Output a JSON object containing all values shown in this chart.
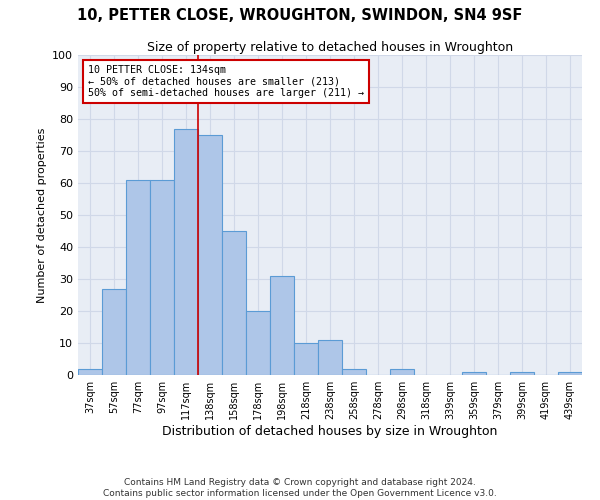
{
  "title1": "10, PETTER CLOSE, WROUGHTON, SWINDON, SN4 9SF",
  "title2": "Size of property relative to detached houses in Wroughton",
  "xlabel": "Distribution of detached houses by size in Wroughton",
  "ylabel": "Number of detached properties",
  "categories": [
    "37sqm",
    "57sqm",
    "77sqm",
    "97sqm",
    "117sqm",
    "138sqm",
    "158sqm",
    "178sqm",
    "198sqm",
    "218sqm",
    "238sqm",
    "258sqm",
    "278sqm",
    "298sqm",
    "318sqm",
    "339sqm",
    "359sqm",
    "379sqm",
    "399sqm",
    "419sqm",
    "439sqm"
  ],
  "values": [
    2,
    27,
    61,
    61,
    77,
    75,
    45,
    20,
    31,
    10,
    11,
    2,
    0,
    2,
    0,
    0,
    1,
    0,
    1,
    0,
    1
  ],
  "bar_color": "#aec6e8",
  "bar_edge_color": "#5b9bd5",
  "highlight_label": "10 PETTER CLOSE: 134sqm",
  "annotation_line1": "← 50% of detached houses are smaller (213)",
  "annotation_line2": "50% of semi-detached houses are larger (211) →",
  "annotation_box_color": "#ffffff",
  "annotation_box_edge_color": "#cc0000",
  "grid_color": "#d0d8e8",
  "background_color": "#e8edf5",
  "ylim": [
    0,
    100
  ],
  "red_line_x": 4.5,
  "footnote1": "Contains HM Land Registry data © Crown copyright and database right 2024.",
  "footnote2": "Contains public sector information licensed under the Open Government Licence v3.0."
}
